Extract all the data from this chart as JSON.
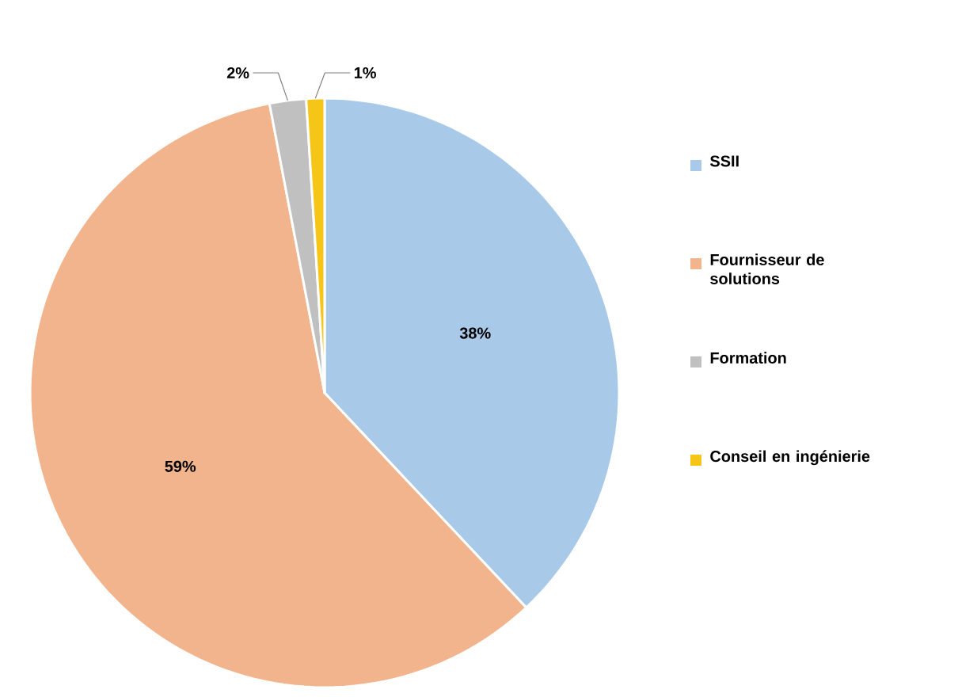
{
  "chart_data": {
    "type": "pie",
    "categories": [
      "SSII",
      "Fournisseur de solutions",
      "Formation",
      "Conseil en ingénierie"
    ],
    "values": [
      38,
      59,
      2,
      1
    ],
    "colors": [
      "#a9c9e8",
      "#f2b48c",
      "#c0c0c0",
      "#f5c518"
    ],
    "value_labels": [
      "38%",
      "59%",
      "2%",
      "1%"
    ],
    "legend": "right"
  }
}
